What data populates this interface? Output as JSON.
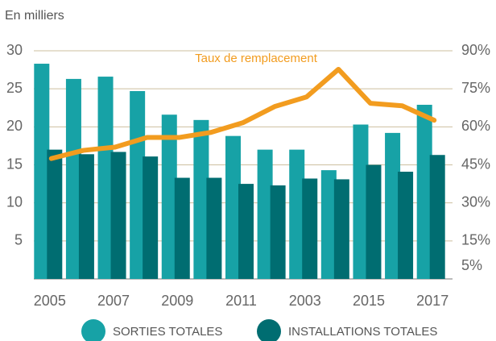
{
  "chart_data": {
    "type": "bar_line",
    "title": "En milliers",
    "annotation": "Taux de remplacement",
    "categories": [
      "2005",
      null,
      "2007",
      null,
      "2009",
      null,
      "2011",
      null,
      "2003",
      null,
      "2015",
      null,
      "2017"
    ],
    "series": [
      {
        "name": "SORTIES TOTALES",
        "type": "bar",
        "color": "#17a2a6",
        "values": [
          28.3,
          26.3,
          26.6,
          24.7,
          21.6,
          20.9,
          18.8,
          17.0,
          17.0,
          14.3,
          20.3,
          19.2,
          22.9
        ]
      },
      {
        "name": "INSTALLATIONS TOTALES",
        "type": "bar",
        "color": "#006d71",
        "values": [
          17.0,
          16.4,
          16.7,
          16.1,
          13.3,
          13.3,
          12.5,
          12.3,
          13.2,
          13.1,
          15.0,
          14.1,
          16.3
        ]
      },
      {
        "name": "Taux de remplacement",
        "type": "line",
        "axis": "y2",
        "color": "#f29c1f",
        "values": [
          47.5,
          50.7,
          52.0,
          55.8,
          55.8,
          57.8,
          61.6,
          68.0,
          71.8,
          82.7,
          69.3,
          68.3,
          62.6
        ]
      }
    ],
    "ylim": [
      0,
      30
    ],
    "yticks": [
      5,
      10,
      15,
      20,
      25,
      30
    ],
    "y2lim": [
      0,
      90
    ],
    "y2ticks": [
      {
        "value": 5,
        "label": "5%"
      },
      {
        "value": 15,
        "label": "15%"
      },
      {
        "value": 30,
        "label": "30%"
      },
      {
        "value": 45,
        "label": "45%"
      },
      {
        "value": 60,
        "label": "60%"
      },
      {
        "value": 75,
        "label": "75%"
      },
      {
        "value": 90,
        "label": "90%"
      }
    ],
    "grid": true
  }
}
